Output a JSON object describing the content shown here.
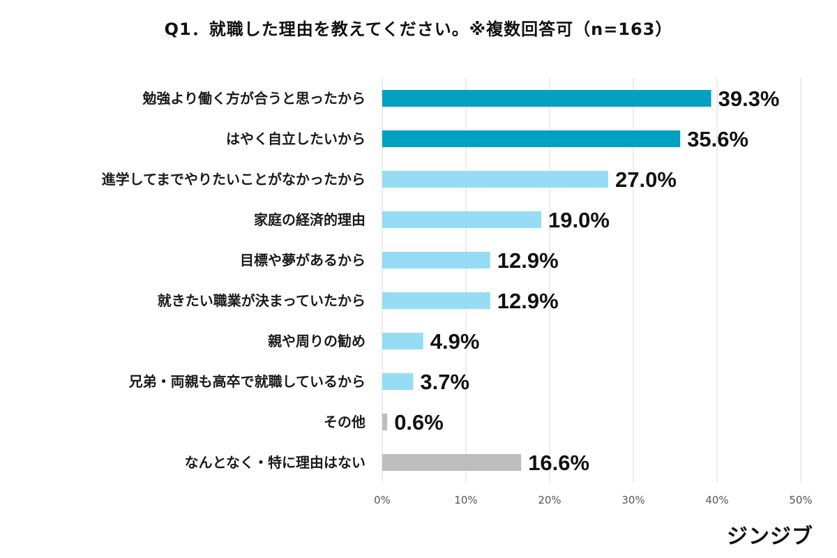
{
  "chart_data": {
    "type": "bar",
    "orientation": "horizontal",
    "title": "Q1．就職した理由を教えてください。※複数回答可（n=163）",
    "categories": [
      "勉強より働く方が合うと思ったから",
      "はやく自立したいから",
      "進学してまでやりたいことがなかったから",
      "家庭の経済的理由",
      "目標や夢があるから",
      "就きたい職業が決まっていたから",
      "親や周りの勧め",
      "兄弟・両親も高卒で就職しているから",
      "その他",
      "なんとなく・特に理由はない"
    ],
    "values": [
      39.3,
      35.6,
      27.0,
      19.0,
      12.9,
      12.9,
      4.9,
      3.7,
      0.6,
      16.6
    ],
    "value_labels": [
      "39.3%",
      "35.6%",
      "27.0%",
      "19.0%",
      "12.9%",
      "12.9%",
      "4.9%",
      "3.7%",
      "0.6%",
      "16.6%"
    ],
    "bar_colors": [
      "#00a0c0",
      "#00a0c0",
      "#96dcf5",
      "#96dcf5",
      "#96dcf5",
      "#96dcf5",
      "#96dcf5",
      "#96dcf5",
      "#bdbdbd",
      "#bdbdbd"
    ],
    "xlim": [
      0,
      50
    ],
    "x_ticks": [
      0,
      10,
      20,
      30,
      40,
      50
    ],
    "x_tick_labels": [
      "0%",
      "10%",
      "20%",
      "30%",
      "40%",
      "50%"
    ],
    "grid": true,
    "xlabel": "",
    "ylabel": ""
  },
  "brand": {
    "logo_text": "ジンジブ"
  }
}
